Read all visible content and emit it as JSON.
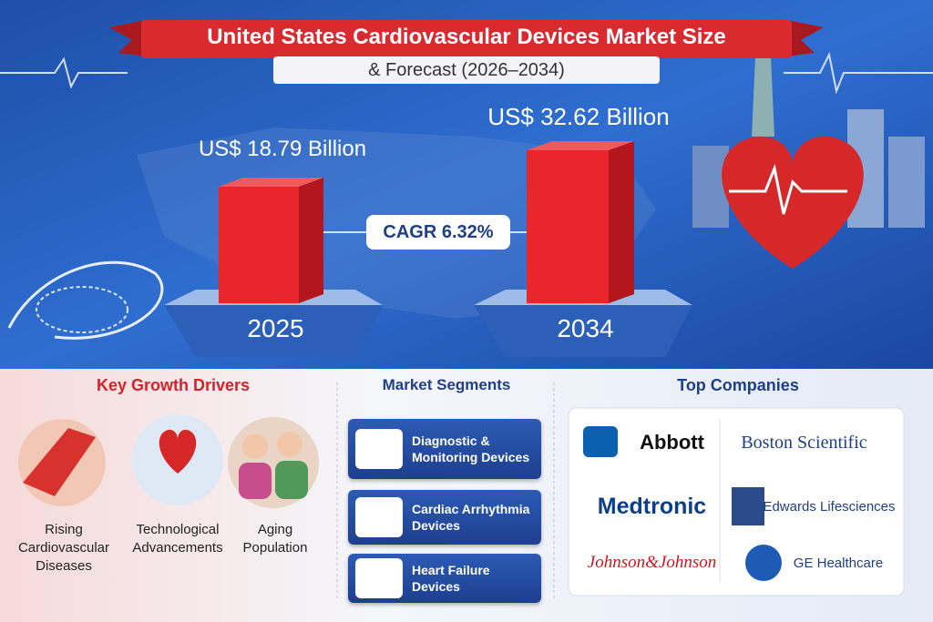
{
  "header": {
    "title": "United States Cardiovascular Devices Market Size",
    "subtitle": "& Forecast (2026–2034)"
  },
  "market": {
    "start": {
      "value": "US$ 18.79 Billion",
      "year": "2025"
    },
    "end": {
      "value": "US$ 32.62 Billion",
      "year": "2034"
    },
    "cagr": "CAGR 6.32%"
  },
  "drivers": {
    "title": "Key Growth Drivers",
    "items": [
      "Rising Cardiovascular Diseases",
      "Technological Advancements",
      "Aging Population"
    ]
  },
  "segments": {
    "title": "Market Segments",
    "items": [
      "Diagnostic & Monitoring Devices",
      "Cardiac Arrhythmia Devices",
      "Heart Failure Devices"
    ]
  },
  "companies": {
    "title": "Top Companies",
    "items": [
      "Abbott",
      "Boston Scientific",
      "Medtronic",
      "Edwards Lifesciences",
      "Johnson&Johnson",
      "GE Healthcare"
    ]
  }
}
